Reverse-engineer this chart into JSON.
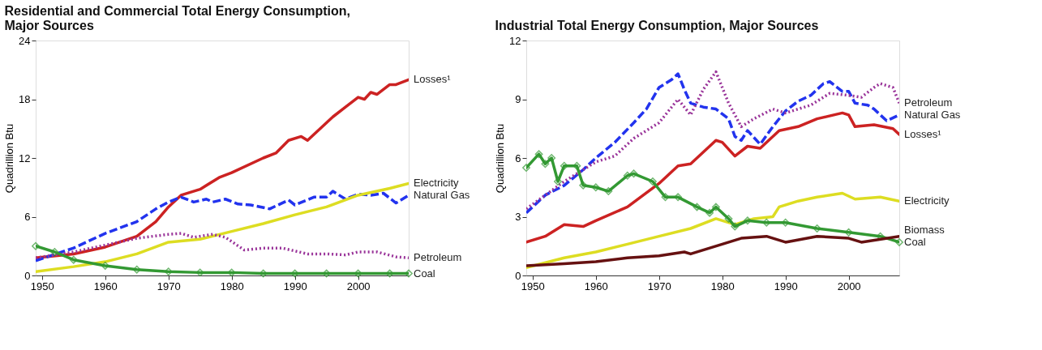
{
  "chart_data": [
    {
      "type": "line",
      "title": "Residential and Commercial Total Energy Consumption, Major Sources",
      "ylabel": "Quadrillion Btu",
      "xlim": [
        1949,
        2008
      ],
      "xticks": [
        1950,
        1960,
        1970,
        1980,
        1990,
        2000
      ],
      "ylim": [
        0,
        24
      ],
      "yticks": [
        0,
        6,
        12,
        18,
        24
      ],
      "grid": false,
      "series": [
        {
          "name": "Losses¹",
          "color": "#cc2222",
          "line_style": "solid",
          "x": [
            1949,
            1955,
            1960,
            1965,
            1968,
            1970,
            1972,
            1975,
            1978,
            1980,
            1985,
            1987,
            1989,
            1991,
            1992,
            1994,
            1996,
            1998,
            2000,
            2001,
            2002,
            2003,
            2005,
            2006,
            2008
          ],
          "values": [
            1.8,
            2.2,
            2.9,
            4.0,
            5.5,
            7.0,
            8.2,
            8.8,
            10.0,
            10.5,
            12.0,
            12.5,
            13.8,
            14.2,
            13.8,
            15.0,
            16.2,
            17.2,
            18.2,
            18.0,
            18.7,
            18.5,
            19.5,
            19.5,
            20.0
          ]
        },
        {
          "name": "Natural Gas",
          "color": "#2233ee",
          "line_style": "dashed",
          "x": [
            1949,
            1955,
            1960,
            1965,
            1968,
            1970,
            1972,
            1974,
            1976,
            1977,
            1979,
            1981,
            1983,
            1986,
            1989,
            1990,
            1993,
            1995,
            1996,
            1998,
            2000,
            2002,
            2004,
            2006,
            2008
          ],
          "values": [
            1.5,
            2.8,
            4.3,
            5.5,
            6.8,
            7.5,
            8.0,
            7.5,
            7.8,
            7.5,
            7.8,
            7.3,
            7.2,
            6.8,
            7.7,
            7.2,
            8.0,
            8.0,
            8.6,
            7.8,
            8.3,
            8.2,
            8.4,
            7.4,
            8.2
          ]
        },
        {
          "name": "Electricity",
          "color": "#dddd22",
          "line_style": "solid",
          "x": [
            1949,
            1955,
            1960,
            1965,
            1970,
            1975,
            1980,
            1985,
            1990,
            1995,
            2000,
            2005,
            2008
          ],
          "values": [
            0.4,
            0.9,
            1.4,
            2.2,
            3.4,
            3.7,
            4.5,
            5.3,
            6.2,
            7.0,
            8.2,
            8.9,
            9.4
          ]
        },
        {
          "name": "Petroleum",
          "color": "#993399",
          "line_style": "dotted",
          "x": [
            1949,
            1955,
            1960,
            1965,
            1970,
            1972,
            1974,
            1977,
            1979,
            1982,
            1985,
            1988,
            1992,
            1995,
            1998,
            2000,
            2003,
            2006,
            2008
          ],
          "values": [
            1.8,
            2.4,
            3.1,
            3.8,
            4.2,
            4.3,
            3.9,
            4.2,
            3.9,
            2.6,
            2.8,
            2.8,
            2.2,
            2.2,
            2.1,
            2.4,
            2.4,
            1.9,
            1.8
          ]
        },
        {
          "name": "Coal",
          "color": "#339933",
          "line_style": "solid",
          "marker": "diamond",
          "x": [
            1949,
            1952,
            1955,
            1960,
            1965,
            1970,
            1975,
            1980,
            1985,
            1990,
            1995,
            2000,
            2005,
            2008
          ],
          "values": [
            3.0,
            2.4,
            1.6,
            1.0,
            0.6,
            0.4,
            0.3,
            0.3,
            0.2,
            0.2,
            0.2,
            0.2,
            0.2,
            0.2
          ]
        }
      ]
    },
    {
      "type": "line",
      "title": "Industrial Total Energy Consumption, Major Sources",
      "ylabel": "Quadrillion Btu",
      "xlim": [
        1949,
        2008
      ],
      "xticks": [
        1950,
        1960,
        1970,
        1980,
        1990,
        2000
      ],
      "ylim": [
        0,
        12
      ],
      "yticks": [
        0,
        3,
        6,
        9,
        12
      ],
      "grid": false,
      "series": [
        {
          "name": "Natural Gas",
          "color": "#2233ee",
          "line_style": "dashed",
          "x": [
            1949,
            1952,
            1955,
            1958,
            1960,
            1963,
            1966,
            1968,
            1970,
            1972,
            1973,
            1974,
            1975,
            1977,
            1979,
            1981,
            1982,
            1983,
            1984,
            1986,
            1988,
            1990,
            1992,
            1994,
            1996,
            1997,
            1999,
            2000,
            2001,
            2003,
            2004,
            2006,
            2008
          ],
          "values": [
            3.2,
            4.1,
            4.6,
            5.4,
            6.0,
            6.8,
            7.8,
            8.5,
            9.6,
            10.0,
            10.3,
            9.5,
            8.8,
            8.6,
            8.5,
            8.0,
            7.1,
            6.9,
            7.4,
            6.7,
            7.6,
            8.4,
            8.9,
            9.2,
            9.8,
            9.9,
            9.4,
            9.4,
            8.8,
            8.7,
            8.5,
            7.9,
            8.2
          ]
        },
        {
          "name": "Petroleum",
          "color": "#993399",
          "line_style": "dotted",
          "x": [
            1949,
            1955,
            1960,
            1963,
            1966,
            1970,
            1973,
            1975,
            1977,
            1979,
            1981,
            1983,
            1985,
            1988,
            1990,
            1992,
            1994,
            1997,
            2000,
            2002,
            2004,
            2005,
            2007,
            2008
          ],
          "values": [
            3.4,
            4.8,
            5.8,
            6.1,
            7.0,
            7.8,
            9.0,
            8.2,
            9.5,
            10.4,
            8.8,
            7.6,
            8.0,
            8.5,
            8.3,
            8.5,
            8.7,
            9.3,
            9.2,
            9.1,
            9.6,
            9.8,
            9.6,
            8.8
          ]
        },
        {
          "name": "Losses¹",
          "color": "#cc2222",
          "line_style": "solid",
          "x": [
            1949,
            1952,
            1955,
            1958,
            1960,
            1965,
            1970,
            1973,
            1975,
            1977,
            1979,
            1980,
            1982,
            1984,
            1986,
            1989,
            1992,
            1995,
            1999,
            2000,
            2001,
            2004,
            2007,
            2008
          ],
          "values": [
            1.7,
            2.0,
            2.6,
            2.5,
            2.8,
            3.5,
            4.7,
            5.6,
            5.7,
            6.3,
            6.9,
            6.8,
            6.1,
            6.6,
            6.5,
            7.4,
            7.6,
            8.0,
            8.3,
            8.2,
            7.6,
            7.7,
            7.5,
            7.2
          ]
        },
        {
          "name": "Electricity",
          "color": "#dddd22",
          "line_style": "solid",
          "x": [
            1949,
            1955,
            1960,
            1965,
            1970,
            1975,
            1979,
            1982,
            1985,
            1988,
            1989,
            1992,
            1995,
            1999,
            2001,
            2005,
            2008
          ],
          "values": [
            0.4,
            0.9,
            1.2,
            1.6,
            2.0,
            2.4,
            2.9,
            2.6,
            2.9,
            3.0,
            3.5,
            3.8,
            4.0,
            4.2,
            3.9,
            4.0,
            3.8
          ]
        },
        {
          "name": "Coal",
          "color": "#339933",
          "line_style": "solid",
          "marker": "diamond",
          "x": [
            1949,
            1951,
            1952,
            1953,
            1954,
            1955,
            1957,
            1958,
            1960,
            1962,
            1965,
            1966,
            1969,
            1971,
            1973,
            1976,
            1978,
            1979,
            1981,
            1982,
            1984,
            1987,
            1990,
            1995,
            2000,
            2005,
            2008
          ],
          "values": [
            5.5,
            6.2,
            5.7,
            6.0,
            4.8,
            5.6,
            5.6,
            4.6,
            4.5,
            4.3,
            5.1,
            5.2,
            4.8,
            4.0,
            4.0,
            3.5,
            3.2,
            3.5,
            2.9,
            2.5,
            2.8,
            2.7,
            2.7,
            2.4,
            2.2,
            2.0,
            1.7
          ]
        },
        {
          "name": "Biomass",
          "color": "#661111",
          "line_style": "solid",
          "x": [
            1949,
            1955,
            1960,
            1965,
            1970,
            1974,
            1975,
            1980,
            1983,
            1987,
            1990,
            1995,
            2000,
            2002,
            2008
          ],
          "values": [
            0.5,
            0.6,
            0.7,
            0.9,
            1.0,
            1.2,
            1.1,
            1.6,
            1.9,
            2.0,
            1.7,
            2.0,
            1.9,
            1.7,
            2.0
          ]
        }
      ]
    }
  ]
}
